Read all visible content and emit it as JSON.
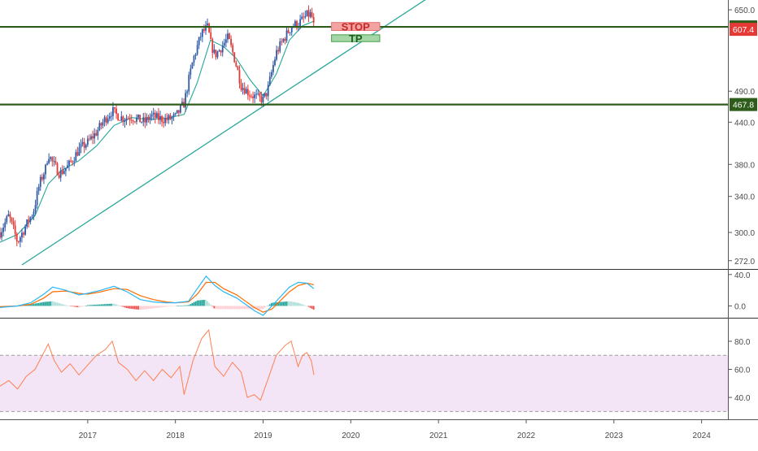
{
  "colors": {
    "up": "#2f5ba8",
    "down": "#e53935",
    "level_line": "#2e5c1a",
    "trendline": "#26a69a",
    "ma": "#26a69a",
    "macd_line": "#29b6f6",
    "signal_line": "#ff6d00",
    "hist_pos": "#26a69a",
    "hist_pos_light": "#b2dfdb",
    "hist_neg": "#ef5350",
    "hist_neg_light": "#ffcdd2",
    "rsi_line": "#ff7f50",
    "rsi_band": "#f3e5f5",
    "stop_fill": "#f4a3a3",
    "tp_fill": "#a5d6a7",
    "last_price_tag": "#e53935",
    "axis_text": "#4a4a4a",
    "pane_border": "#333333"
  },
  "chart_data": [
    {
      "type": "candlestick",
      "pane": "price",
      "x_range": [
        2016.0,
        2024.3
      ],
      "y_range": [
        265,
        665
      ],
      "y_scale": "log",
      "y_ticks": [
        "650.0",
        "490.0",
        "440.0",
        "380.0",
        "340.0",
        "300.0",
        "272.0"
      ],
      "y_tick_values": [
        650,
        490,
        440,
        380,
        340,
        300,
        272
      ],
      "path_x": [
        2016.0,
        2016.1,
        2016.2,
        2016.3,
        2016.38,
        2016.45,
        2016.52,
        2016.55,
        2016.6,
        2016.68,
        2016.78,
        2016.9,
        2017.0,
        2017.1,
        2017.2,
        2017.28,
        2017.32,
        2017.4,
        2017.5,
        2017.65,
        2017.72,
        2017.8,
        2017.9,
        2018.0,
        2018.1,
        2018.2,
        2018.3,
        2018.37,
        2018.4,
        2018.45,
        2018.5,
        2018.6,
        2018.68,
        2018.75,
        2018.85,
        2018.95,
        2019.0,
        2019.05,
        2019.15,
        2019.25,
        2019.33,
        2019.4,
        2019.45,
        2019.5,
        2019.55,
        2019.58
      ],
      "path_y": [
        300,
        318,
        290,
        308,
        322,
        355,
        375,
        395,
        382,
        368,
        378,
        400,
        410,
        425,
        445,
        458,
        452,
        446,
        448,
        440,
        450,
        446,
        444,
        448,
        470,
        545,
        600,
        612,
        580,
        555,
        565,
        590,
        545,
        500,
        485,
        478,
        476,
        490,
        560,
        592,
        615,
        620,
        628,
        638,
        640,
        612
      ],
      "ma_x": [
        2016.0,
        2016.2,
        2016.4,
        2016.55,
        2016.7,
        2016.9,
        2017.1,
        2017.3,
        2017.5,
        2017.7,
        2017.9,
        2018.1,
        2018.25,
        2018.4,
        2018.55,
        2018.7,
        2018.85,
        2019.0,
        2019.15,
        2019.3,
        2019.45,
        2019.58
      ],
      "ma_y": [
        290,
        298,
        318,
        355,
        372,
        385,
        405,
        435,
        447,
        444,
        446,
        452,
        505,
        585,
        572,
        548,
        510,
        482,
        520,
        585,
        615,
        625
      ],
      "level_lines": [
        {
          "value": 612.6,
          "label": "612.6"
        },
        {
          "value": 467.8,
          "label": "467.8"
        }
      ],
      "last_price": {
        "value": 607.4,
        "label": "607.4"
      },
      "trendline": {
        "x": [
          2016.25,
          2020.9
        ],
        "y": [
          268,
          680
        ]
      },
      "annotations": [
        {
          "text": "STOP",
          "x1": 2019.78,
          "x2": 2020.33,
          "y_top": 622,
          "y_bot": 605
        },
        {
          "text": "TP",
          "x1": 2019.78,
          "x2": 2020.33,
          "y_top": 596,
          "y_bot": 582
        }
      ]
    },
    {
      "type": "macd",
      "pane": "macd",
      "y_range": [
        -14,
        45
      ],
      "y_ticks": [
        "40.0",
        "0.0"
      ],
      "y_tick_values": [
        40,
        0
      ],
      "x": [
        2016.0,
        2016.2,
        2016.35,
        2016.5,
        2016.6,
        2016.75,
        2016.9,
        2017.0,
        2017.15,
        2017.3,
        2017.45,
        2017.6,
        2017.75,
        2017.9,
        2018.0,
        2018.15,
        2018.25,
        2018.35,
        2018.45,
        2018.55,
        2018.7,
        2018.8,
        2018.9,
        2019.0,
        2019.1,
        2019.2,
        2019.3,
        2019.4,
        2019.5,
        2019.58
      ],
      "macd": [
        -2,
        0,
        4,
        15,
        24,
        20,
        14,
        16,
        20,
        25,
        18,
        8,
        5,
        4,
        4,
        6,
        22,
        38,
        26,
        18,
        10,
        2,
        -6,
        -12,
        0,
        12,
        24,
        30,
        29,
        22
      ],
      "signal": [
        -1,
        0,
        2,
        10,
        18,
        19,
        16,
        15,
        18,
        22,
        21,
        13,
        8,
        5,
        4,
        5,
        15,
        30,
        30,
        22,
        14,
        6,
        -2,
        -8,
        -4,
        7,
        18,
        26,
        29,
        27
      ],
      "hist": [
        -1,
        0,
        2,
        5,
        6,
        1,
        -2,
        1,
        2,
        3,
        -3,
        -5,
        -3,
        -1,
        0,
        1,
        7,
        8,
        -4,
        -4,
        -4,
        -4,
        -4,
        -4,
        4,
        5,
        6,
        4,
        0,
        -5
      ]
    },
    {
      "type": "line",
      "pane": "rsi",
      "y_range": [
        25,
        95
      ],
      "y_ticks": [
        "80.0",
        "60.0",
        "40.0"
      ],
      "y_tick_values": [
        80,
        60,
        40
      ],
      "band": [
        30,
        70
      ],
      "x": [
        2016.0,
        2016.1,
        2016.2,
        2016.3,
        2016.4,
        2016.5,
        2016.55,
        2016.62,
        2016.7,
        2016.8,
        2016.9,
        2017.0,
        2017.1,
        2017.2,
        2017.28,
        2017.35,
        2017.45,
        2017.55,
        2017.65,
        2017.75,
        2017.85,
        2017.95,
        2018.05,
        2018.1,
        2018.2,
        2018.3,
        2018.38,
        2018.45,
        2018.55,
        2018.65,
        2018.75,
        2018.82,
        2018.9,
        2018.97,
        2019.05,
        2019.15,
        2019.25,
        2019.32,
        2019.4,
        2019.45,
        2019.5,
        2019.55,
        2019.58
      ],
      "y": [
        48,
        52,
        46,
        55,
        60,
        72,
        78,
        66,
        58,
        64,
        56,
        63,
        70,
        74,
        80,
        65,
        60,
        52,
        59,
        52,
        60,
        54,
        62,
        42,
        66,
        82,
        88,
        62,
        55,
        65,
        58,
        40,
        42,
        38,
        52,
        70,
        77,
        80,
        62,
        70,
        72,
        66,
        56
      ]
    }
  ],
  "x_axis": {
    "ticks": [
      "2017",
      "2018",
      "2019",
      "2020",
      "2021",
      "2022",
      "2023",
      "2024"
    ],
    "tick_values": [
      2017,
      2018,
      2019,
      2020,
      2021,
      2022,
      2023,
      2024
    ]
  }
}
